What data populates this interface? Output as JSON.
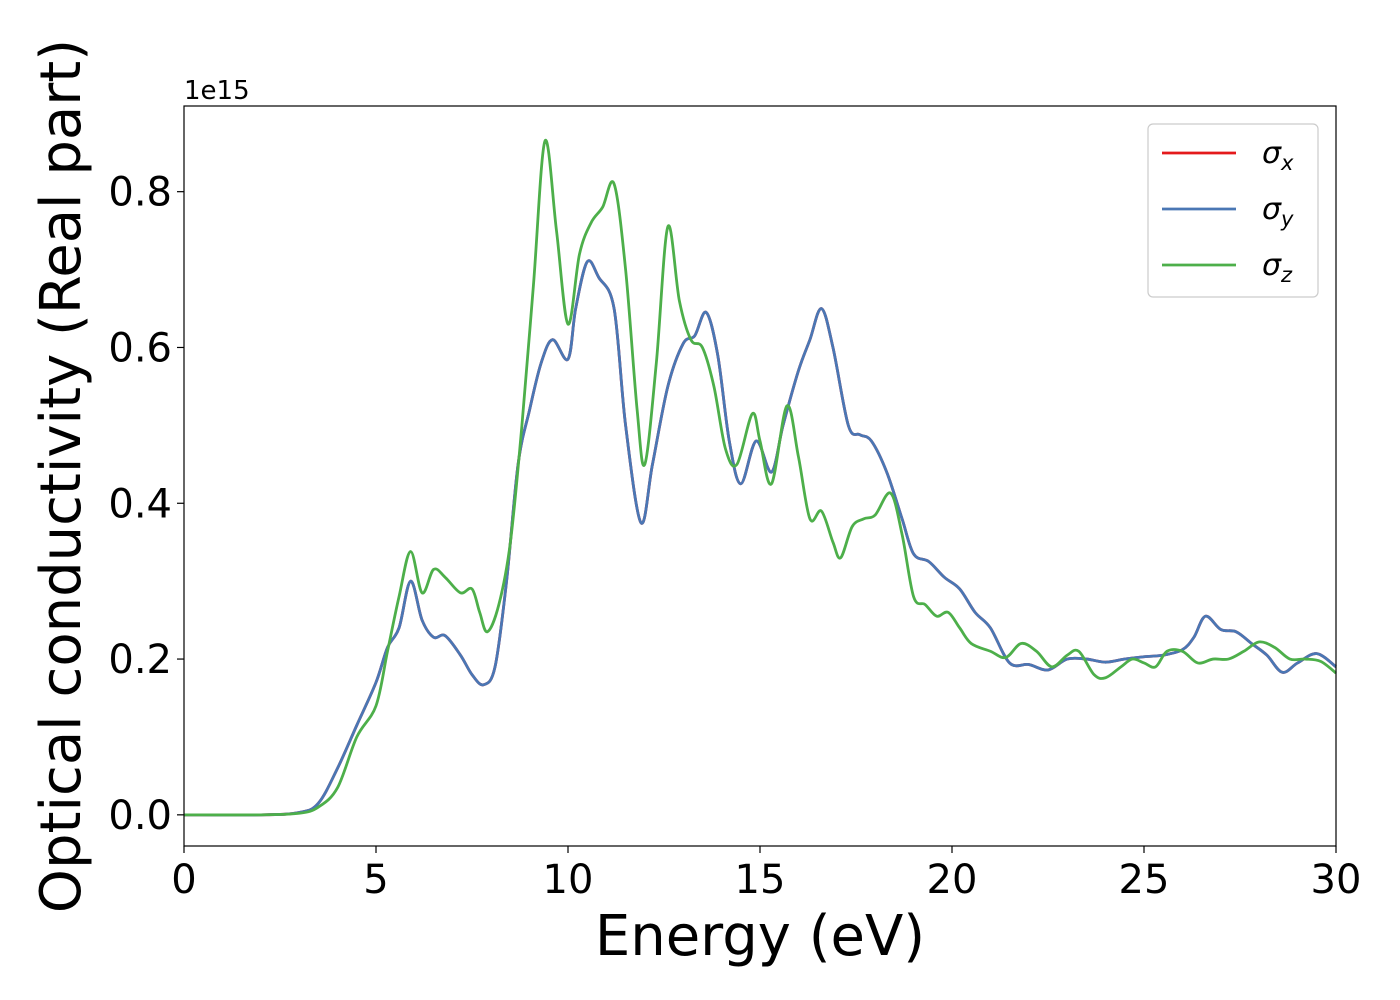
{
  "chart_data": {
    "type": "line",
    "title": "",
    "xlabel": "Energy (eV)",
    "ylabel": "Optical conductivity (Real part)",
    "y_offset_text": "1e15",
    "xlim": [
      0,
      30
    ],
    "ylim": [
      -0.04,
      0.91
    ],
    "x_ticks": [
      0,
      5,
      10,
      15,
      20,
      25,
      30
    ],
    "x_tick_labels": [
      "0",
      "5",
      "10",
      "15",
      "20",
      "25",
      "30"
    ],
    "y_ticks": [
      0.0,
      0.2,
      0.4,
      0.6,
      0.8
    ],
    "y_tick_labels": [
      "0.0",
      "0.2",
      "0.4",
      "0.6",
      "0.8"
    ],
    "grid": false,
    "legend_position": "top-right",
    "series": [
      {
        "name": "σx",
        "symbol": "σ",
        "subscript": "x",
        "color": "#e41a1c",
        "points": [
          [
            0,
            0
          ],
          [
            2,
            0
          ],
          [
            3,
            0.003
          ],
          [
            3.5,
            0.015
          ],
          [
            4,
            0.06
          ],
          [
            4.5,
            0.115
          ],
          [
            5,
            0.17
          ],
          [
            5.3,
            0.215
          ],
          [
            5.6,
            0.24
          ],
          [
            5.9,
            0.3
          ],
          [
            6.2,
            0.25
          ],
          [
            6.5,
            0.228
          ],
          [
            6.8,
            0.23
          ],
          [
            7.2,
            0.205
          ],
          [
            7.5,
            0.18
          ],
          [
            7.8,
            0.167
          ],
          [
            8.1,
            0.19
          ],
          [
            8.4,
            0.3
          ],
          [
            8.7,
            0.45
          ],
          [
            9,
            0.52
          ],
          [
            9.3,
            0.58
          ],
          [
            9.6,
            0.61
          ],
          [
            10,
            0.585
          ],
          [
            10.2,
            0.65
          ],
          [
            10.5,
            0.71
          ],
          [
            10.8,
            0.69
          ],
          [
            11.2,
            0.65
          ],
          [
            11.5,
            0.5
          ],
          [
            11.9,
            0.375
          ],
          [
            12.2,
            0.45
          ],
          [
            12.6,
            0.55
          ],
          [
            13,
            0.605
          ],
          [
            13.3,
            0.615
          ],
          [
            13.6,
            0.645
          ],
          [
            13.9,
            0.59
          ],
          [
            14.2,
            0.48
          ],
          [
            14.5,
            0.425
          ],
          [
            14.9,
            0.48
          ],
          [
            15.3,
            0.44
          ],
          [
            15.6,
            0.5
          ],
          [
            16,
            0.57
          ],
          [
            16.3,
            0.61
          ],
          [
            16.6,
            0.65
          ],
          [
            16.9,
            0.6
          ],
          [
            17.3,
            0.5
          ],
          [
            17.6,
            0.488
          ],
          [
            17.9,
            0.48
          ],
          [
            18.3,
            0.44
          ],
          [
            18.7,
            0.38
          ],
          [
            19,
            0.335
          ],
          [
            19.4,
            0.325
          ],
          [
            19.8,
            0.305
          ],
          [
            20.2,
            0.29
          ],
          [
            20.6,
            0.26
          ],
          [
            21,
            0.24
          ],
          [
            21.5,
            0.195
          ],
          [
            22,
            0.193
          ],
          [
            22.5,
            0.186
          ],
          [
            23,
            0.2
          ],
          [
            23.5,
            0.2
          ],
          [
            24,
            0.196
          ],
          [
            24.5,
            0.2
          ],
          [
            25,
            0.203
          ],
          [
            25.5,
            0.205
          ],
          [
            26,
            0.212
          ],
          [
            26.3,
            0.228
          ],
          [
            26.6,
            0.255
          ],
          [
            27,
            0.238
          ],
          [
            27.4,
            0.235
          ],
          [
            27.8,
            0.22
          ],
          [
            28.2,
            0.205
          ],
          [
            28.6,
            0.183
          ],
          [
            29,
            0.195
          ],
          [
            29.5,
            0.207
          ],
          [
            30,
            0.19
          ]
        ]
      },
      {
        "name": "σy",
        "symbol": "σ",
        "subscript": "y",
        "color": "#4a77b4",
        "points": [
          [
            0,
            0
          ],
          [
            2,
            0
          ],
          [
            3,
            0.003
          ],
          [
            3.5,
            0.015
          ],
          [
            4,
            0.06
          ],
          [
            4.5,
            0.115
          ],
          [
            5,
            0.17
          ],
          [
            5.3,
            0.215
          ],
          [
            5.6,
            0.24
          ],
          [
            5.9,
            0.3
          ],
          [
            6.2,
            0.25
          ],
          [
            6.5,
            0.228
          ],
          [
            6.8,
            0.23
          ],
          [
            7.2,
            0.205
          ],
          [
            7.5,
            0.18
          ],
          [
            7.8,
            0.167
          ],
          [
            8.1,
            0.19
          ],
          [
            8.4,
            0.3
          ],
          [
            8.7,
            0.45
          ],
          [
            9,
            0.52
          ],
          [
            9.3,
            0.58
          ],
          [
            9.6,
            0.61
          ],
          [
            10,
            0.585
          ],
          [
            10.2,
            0.65
          ],
          [
            10.5,
            0.71
          ],
          [
            10.8,
            0.69
          ],
          [
            11.2,
            0.65
          ],
          [
            11.5,
            0.5
          ],
          [
            11.9,
            0.375
          ],
          [
            12.2,
            0.45
          ],
          [
            12.6,
            0.55
          ],
          [
            13,
            0.605
          ],
          [
            13.3,
            0.615
          ],
          [
            13.6,
            0.645
          ],
          [
            13.9,
            0.59
          ],
          [
            14.2,
            0.48
          ],
          [
            14.5,
            0.425
          ],
          [
            14.9,
            0.48
          ],
          [
            15.3,
            0.44
          ],
          [
            15.6,
            0.5
          ],
          [
            16,
            0.57
          ],
          [
            16.3,
            0.61
          ],
          [
            16.6,
            0.65
          ],
          [
            16.9,
            0.6
          ],
          [
            17.3,
            0.5
          ],
          [
            17.6,
            0.488
          ],
          [
            17.9,
            0.48
          ],
          [
            18.3,
            0.44
          ],
          [
            18.7,
            0.38
          ],
          [
            19,
            0.335
          ],
          [
            19.4,
            0.325
          ],
          [
            19.8,
            0.305
          ],
          [
            20.2,
            0.29
          ],
          [
            20.6,
            0.26
          ],
          [
            21,
            0.24
          ],
          [
            21.5,
            0.195
          ],
          [
            22,
            0.193
          ],
          [
            22.5,
            0.186
          ],
          [
            23,
            0.2
          ],
          [
            23.5,
            0.2
          ],
          [
            24,
            0.196
          ],
          [
            24.5,
            0.2
          ],
          [
            25,
            0.203
          ],
          [
            25.5,
            0.205
          ],
          [
            26,
            0.212
          ],
          [
            26.3,
            0.228
          ],
          [
            26.6,
            0.255
          ],
          [
            27,
            0.238
          ],
          [
            27.4,
            0.235
          ],
          [
            27.8,
            0.22
          ],
          [
            28.2,
            0.205
          ],
          [
            28.6,
            0.183
          ],
          [
            29,
            0.195
          ],
          [
            29.5,
            0.207
          ],
          [
            30,
            0.19
          ]
        ]
      },
      {
        "name": "σz",
        "symbol": "σ",
        "subscript": "z",
        "color": "#4daf4a",
        "points": [
          [
            0,
            0
          ],
          [
            2,
            0
          ],
          [
            3,
            0.002
          ],
          [
            3.5,
            0.01
          ],
          [
            4,
            0.035
          ],
          [
            4.5,
            0.1
          ],
          [
            5,
            0.14
          ],
          [
            5.3,
            0.21
          ],
          [
            5.6,
            0.28
          ],
          [
            5.9,
            0.338
          ],
          [
            6.2,
            0.285
          ],
          [
            6.5,
            0.315
          ],
          [
            6.8,
            0.305
          ],
          [
            7.2,
            0.285
          ],
          [
            7.5,
            0.29
          ],
          [
            7.7,
            0.26
          ],
          [
            7.9,
            0.235
          ],
          [
            8.2,
            0.27
          ],
          [
            8.5,
            0.35
          ],
          [
            8.8,
            0.5
          ],
          [
            9.1,
            0.68
          ],
          [
            9.4,
            0.865
          ],
          [
            9.7,
            0.75
          ],
          [
            10,
            0.63
          ],
          [
            10.3,
            0.72
          ],
          [
            10.6,
            0.76
          ],
          [
            10.9,
            0.78
          ],
          [
            11.2,
            0.81
          ],
          [
            11.5,
            0.7
          ],
          [
            11.8,
            0.52
          ],
          [
            12,
            0.45
          ],
          [
            12.3,
            0.58
          ],
          [
            12.6,
            0.755
          ],
          [
            12.9,
            0.66
          ],
          [
            13.2,
            0.61
          ],
          [
            13.5,
            0.6
          ],
          [
            13.8,
            0.55
          ],
          [
            14.1,
            0.47
          ],
          [
            14.4,
            0.45
          ],
          [
            14.8,
            0.515
          ],
          [
            15,
            0.48
          ],
          [
            15.3,
            0.425
          ],
          [
            15.7,
            0.525
          ],
          [
            16,
            0.46
          ],
          [
            16.3,
            0.38
          ],
          [
            16.6,
            0.39
          ],
          [
            16.9,
            0.35
          ],
          [
            17.1,
            0.33
          ],
          [
            17.4,
            0.37
          ],
          [
            17.7,
            0.38
          ],
          [
            18,
            0.385
          ],
          [
            18.4,
            0.413
          ],
          [
            18.7,
            0.36
          ],
          [
            19,
            0.28
          ],
          [
            19.3,
            0.27
          ],
          [
            19.6,
            0.255
          ],
          [
            19.9,
            0.26
          ],
          [
            20.2,
            0.24
          ],
          [
            20.5,
            0.22
          ],
          [
            21,
            0.21
          ],
          [
            21.4,
            0.202
          ],
          [
            21.8,
            0.22
          ],
          [
            22.2,
            0.21
          ],
          [
            22.6,
            0.19
          ],
          [
            23,
            0.205
          ],
          [
            23.3,
            0.21
          ],
          [
            23.7,
            0.18
          ],
          [
            24,
            0.176
          ],
          [
            24.4,
            0.19
          ],
          [
            24.7,
            0.2
          ],
          [
            25,
            0.195
          ],
          [
            25.3,
            0.19
          ],
          [
            25.6,
            0.21
          ],
          [
            26,
            0.21
          ],
          [
            26.4,
            0.195
          ],
          [
            26.8,
            0.2
          ],
          [
            27.2,
            0.2
          ],
          [
            27.6,
            0.21
          ],
          [
            28,
            0.222
          ],
          [
            28.4,
            0.215
          ],
          [
            28.8,
            0.2
          ],
          [
            29.2,
            0.2
          ],
          [
            29.6,
            0.197
          ],
          [
            30,
            0.182
          ]
        ]
      }
    ]
  }
}
